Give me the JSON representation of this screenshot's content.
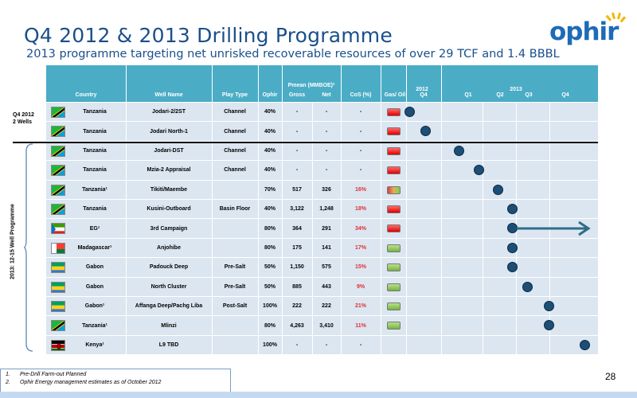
{
  "title": "Q4 2012 & 2013 Drilling Programme",
  "subtitle": "2013 programme targeting net unrisked recoverable resources of over  29 TCF and 1.4 BBBL",
  "logo_text": "ophir",
  "colors": {
    "title": "#1a4f8b",
    "header": "#4bacc6",
    "row_bg": "#dce6f1",
    "marker": "#1d4e75",
    "arrow": "#2f6d86"
  },
  "header": {
    "country": "Country",
    "well_name": "Well Name",
    "play_type": "Play Type",
    "ophir": "Ophir",
    "pmean": "Pmean (MMBOE)²",
    "gross": "Gross",
    "net": "Net",
    "cos": "CoS (%)",
    "gas_oil": "Gas/ Oil",
    "y2012": "2012",
    "y2012_q": "Q4",
    "y2013": "2013",
    "q1": "Q1",
    "q2": "Q2",
    "q3": "Q3",
    "q4": "Q4"
  },
  "side_labels": {
    "q4_2012": "Q4 2012",
    "q4_wells": "2 Wells",
    "programme": "2013: 12-15 Well Programme"
  },
  "rows": [
    {
      "flag": "tanzania",
      "country": "Tanzania",
      "well": "Jodari-2/2ST",
      "play": "Channel",
      "ophir": "40%",
      "gross": "-",
      "net": "-",
      "cos": "-",
      "cos_red": false,
      "swatch": "red",
      "marker_quarter_pos": 0.1
    },
    {
      "flag": "tanzania",
      "country": "Tanzania",
      "well": "Jodari North-1",
      "play": "Channel",
      "ophir": "40%",
      "gross": "-",
      "net": "-",
      "cos": "-",
      "cos_red": false,
      "swatch": "red",
      "marker_quarter_pos": 0.55
    },
    {
      "flag": "tanzania",
      "country": "Tanzania",
      "well": "Jodari-DST",
      "play": "Channel",
      "ophir": "40%",
      "gross": "-",
      "net": "-",
      "cos": "-",
      "cos_red": false,
      "swatch": "red",
      "marker_quarter_pos": 1.45
    },
    {
      "flag": "tanzania",
      "country": "Tanzania",
      "well": "Mzia-2 Appraisal",
      "play": "Channel",
      "ophir": "40%",
      "gross": "-",
      "net": "-",
      "cos": "-",
      "cos_red": false,
      "swatch": "red",
      "marker_quarter_pos": 1.95
    },
    {
      "flag": "tanzania",
      "country": "Tanzania¹",
      "well": "Tikiti/Maembe",
      "play": "",
      "ophir": "70%",
      "gross": "517",
      "net": "326",
      "cos": "16%",
      "cos_red": true,
      "swatch": "mixed",
      "marker_quarter_pos": 2.45
    },
    {
      "flag": "tanzania",
      "country": "Tanzania",
      "well": "Kusini-Outboard",
      "play": "Basin Floor",
      "ophir": "40%",
      "gross": "3,122",
      "net": "1,248",
      "cos": "18%",
      "cos_red": true,
      "swatch": "red",
      "marker_quarter_pos": 2.8
    },
    {
      "flag": "eg",
      "country": "EG¹",
      "well": "3rd Campaign",
      "play": "",
      "ophir": "80%",
      "gross": "364",
      "net": "291",
      "cos": "34%",
      "cos_red": true,
      "swatch": "red",
      "marker_quarter_pos": 2.8,
      "arrow": true
    },
    {
      "flag": "madagascar",
      "country": "Madagascar¹",
      "well": "Anjohibe",
      "play": "",
      "ophir": "80%",
      "gross": "175",
      "net": "141",
      "cos": "17%",
      "cos_red": true,
      "swatch": "green",
      "marker_quarter_pos": 2.8
    },
    {
      "flag": "gabon",
      "country": "Gabon",
      "well": "Padouck Deep",
      "play": "Pre-Salt",
      "ophir": "50%",
      "gross": "1,150",
      "net": "575",
      "cos": "15%",
      "cos_red": true,
      "swatch": "green",
      "marker_quarter_pos": 2.8
    },
    {
      "flag": "gabon",
      "country": "Gabon",
      "well": "North Cluster",
      "play": "Pre-Salt",
      "ophir": "50%",
      "gross": "885",
      "net": "443",
      "cos": "9%",
      "cos_red": true,
      "swatch": "green",
      "marker_quarter_pos": 3.2
    },
    {
      "flag": "gabon",
      "country": "Gabon¹",
      "well": "Affanga Deep/Pachg Liba",
      "play": "Post-Salt",
      "ophir": "100%",
      "gross": "222",
      "net": "222",
      "cos": "21%",
      "cos_red": true,
      "swatch": "green",
      "marker_quarter_pos": 3.75
    },
    {
      "flag": "tanzania",
      "country": "Tanzania¹",
      "well": "Mlinzi",
      "play": "",
      "ophir": "80%",
      "gross": "4,263",
      "net": "3,410",
      "cos": "11%",
      "cos_red": true,
      "swatch": "green",
      "marker_quarter_pos": 3.75
    },
    {
      "flag": "kenya",
      "country": "Kenya¹",
      "well": "L9 TBD",
      "play": "",
      "ophir": "100%",
      "gross": "-",
      "net": "-",
      "cos": "-",
      "cos_red": false,
      "swatch": "none",
      "marker_quarter_pos": 4.65
    }
  ],
  "footnotes": [
    {
      "num": "1.",
      "text": "Pre-Drill Farm-out Planned"
    },
    {
      "num": "2.",
      "text": "Ophir Energy management estimates as of October 2012"
    }
  ],
  "page_number": "28"
}
